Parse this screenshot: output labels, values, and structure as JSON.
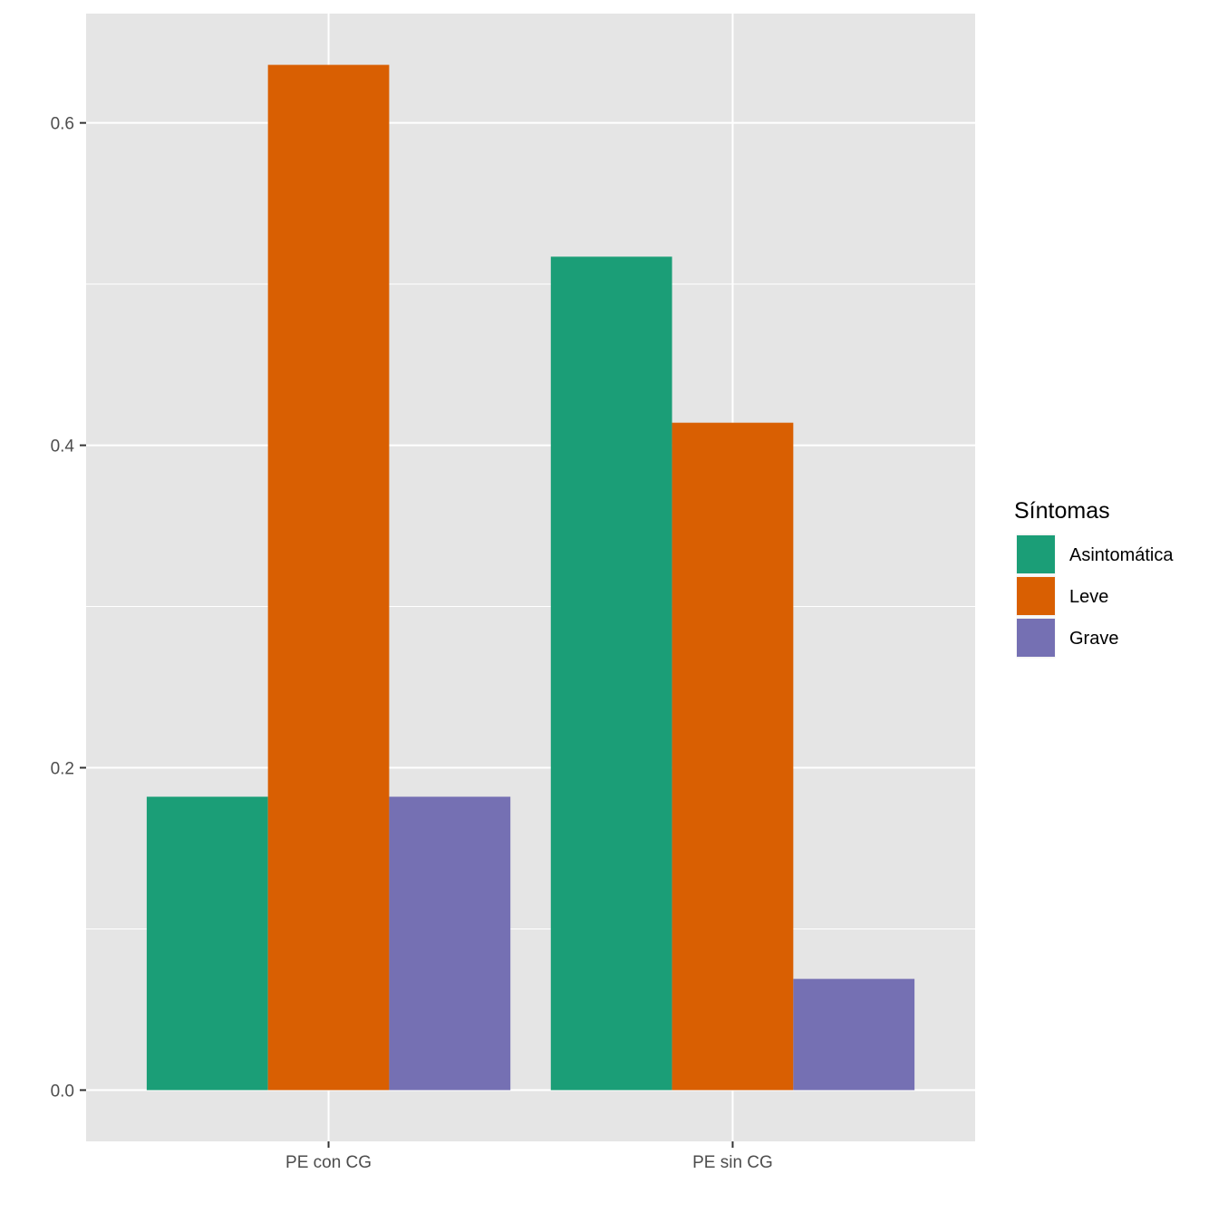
{
  "chart_data": {
    "type": "bar",
    "title": "",
    "xlabel": "",
    "ylabel": "",
    "categories": [
      "PE con CG",
      "PE sin CG"
    ],
    "series": [
      {
        "name": "Asintomática",
        "values": [
          0.182,
          0.517
        ],
        "color": "#1B9E77"
      },
      {
        "name": "Leve",
        "values": [
          0.636,
          0.414
        ],
        "color": "#D95F02"
      },
      {
        "name": "Grave",
        "values": [
          0.182,
          0.069
        ],
        "color": "#7570B3"
      }
    ],
    "ylim": [
      -0.0318,
      0.6678
    ],
    "yticks": [
      0.0,
      0.2,
      0.4,
      0.6
    ],
    "ytick_labels": [
      "0.0",
      "0.2",
      "0.4",
      "0.6"
    ],
    "grid": true,
    "legend": {
      "title": "Síntomas",
      "position": "right"
    },
    "panel_color": "#E5E5E5",
    "grid_color": "#FFFFFF"
  }
}
